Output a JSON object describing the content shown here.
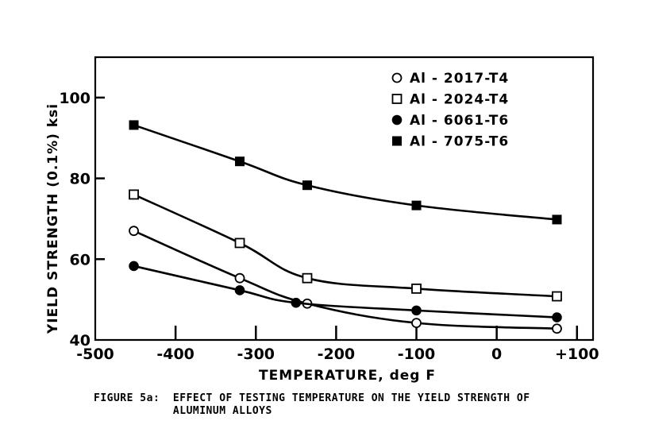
{
  "chart_data": {
    "type": "line",
    "xlabel": "TEMPERATURE, deg F",
    "ylabel": "YIELD STRENGTH (0.1%) ksi",
    "xlim": [
      -500,
      120
    ],
    "ylim": [
      40,
      110
    ],
    "xticks": [
      -500,
      -400,
      -300,
      -200,
      -100,
      0,
      100
    ],
    "xtick_labels": [
      "-500",
      "-400",
      "-300",
      "-200",
      "-100",
      "0",
      "+100"
    ],
    "yticks": [
      40,
      60,
      80,
      100
    ],
    "ytick_labels": [
      "40",
      "60",
      "80",
      "100"
    ],
    "legend_position": "top-right",
    "grid": false,
    "series": [
      {
        "name": "Al - 2017-T4",
        "marker": "open-circle",
        "x": [
          -452,
          -320,
          -236,
          -100,
          75
        ],
        "y": [
          67,
          55.3,
          49,
          44.2,
          42.8
        ]
      },
      {
        "name": "Al - 2024-T4",
        "marker": "open-square",
        "x": [
          -452,
          -320,
          -236,
          -100,
          75
        ],
        "y": [
          76,
          64,
          55.3,
          52.7,
          50.8
        ]
      },
      {
        "name": "Al - 6061-T6",
        "marker": "filled-circle",
        "x": [
          -452,
          -320,
          -250,
          -100,
          75
        ],
        "y": [
          58.3,
          52.3,
          49.2,
          47.3,
          45.6
        ]
      },
      {
        "name": "Al - 7075-T6",
        "marker": "filled-square",
        "x": [
          -452,
          -320,
          -236,
          -100,
          75
        ],
        "y": [
          93.2,
          84.2,
          78.3,
          73.3,
          69.8
        ]
      }
    ]
  },
  "caption": {
    "line1": "FIGURE 5a:  EFFECT OF TESTING TEMPERATURE ON THE YIELD STRENGTH OF",
    "line2": "            ALUMINUM ALLOYS"
  }
}
